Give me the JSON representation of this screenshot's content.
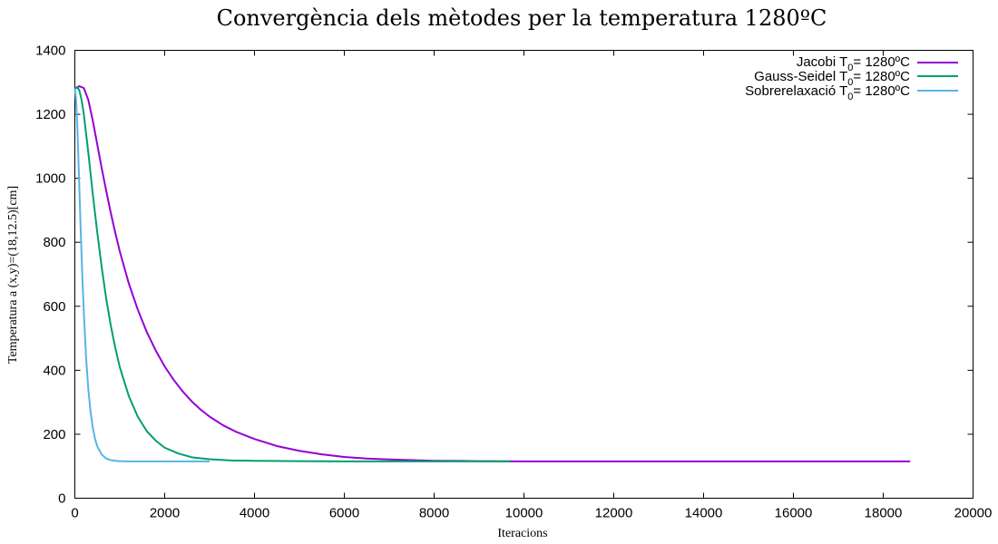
{
  "chart_data": {
    "type": "line",
    "title": "Convergència dels mètodes per la temperatura 1280ºC",
    "xlabel": "Iteracions",
    "ylabel": "Temperatura a (x,y)=(18,12.5)[cm]",
    "xlim": [
      0,
      20000
    ],
    "ylim": [
      0,
      1400
    ],
    "xticks": [
      0,
      2000,
      4000,
      6000,
      8000,
      10000,
      12000,
      14000,
      16000,
      18000,
      20000
    ],
    "yticks": [
      0,
      200,
      400,
      600,
      800,
      1000,
      1200,
      1400
    ],
    "grid": false,
    "legend_position": "top-right",
    "series": [
      {
        "name": "Jacobi T0= 1280ºC",
        "legend_main": "Jacobi T",
        "legend_sub": "0",
        "legend_tail": "= 1280ºC",
        "color": "#9400d3",
        "x": [
          0,
          100,
          200,
          300,
          400,
          500,
          600,
          700,
          800,
          900,
          1000,
          1200,
          1400,
          1600,
          1800,
          2000,
          2200,
          2400,
          2600,
          2800,
          3000,
          3300,
          3600,
          4000,
          4500,
          5000,
          5500,
          6000,
          6500,
          7000,
          8000,
          9000,
          10000,
          12000,
          14000,
          16000,
          18000,
          18600
        ],
        "y": [
          1280,
          1288,
          1282,
          1245,
          1180,
          1105,
          1030,
          960,
          892,
          830,
          772,
          672,
          590,
          520,
          462,
          412,
          370,
          334,
          303,
          277,
          255,
          228,
          207,
          185,
          163,
          148,
          137,
          129,
          124,
          121,
          117,
          116,
          115,
          115,
          115,
          115,
          115,
          115
        ]
      },
      {
        "name": "Gauss-Seidel T0= 1280ºC",
        "legend_main": "Gauss-Seidel T",
        "legend_sub": "0",
        "legend_tail": "= 1280ºC",
        "color": "#009e73",
        "x": [
          0,
          50,
          100,
          150,
          200,
          300,
          400,
          500,
          600,
          700,
          800,
          900,
          1000,
          1200,
          1400,
          1600,
          1800,
          2000,
          2300,
          2600,
          3000,
          3500,
          4000,
          5000,
          6000,
          7000,
          8000,
          9000,
          9700
        ],
        "y": [
          1280,
          1285,
          1275,
          1245,
          1200,
          1080,
          950,
          830,
          720,
          622,
          540,
          470,
          410,
          320,
          255,
          210,
          180,
          158,
          140,
          128,
          122,
          118,
          117,
          116,
          115,
          115,
          115,
          115,
          115
        ]
      },
      {
        "name": "Sobrerelaxació T0= 1280ºC",
        "legend_main": "Sobrerelaxació T",
        "legend_sub": "0",
        "legend_tail": "= 1280ºC",
        "color": "#56b4e9",
        "x": [
          0,
          25,
          50,
          75,
          100,
          125,
          150,
          175,
          200,
          250,
          300,
          350,
          400,
          450,
          500,
          600,
          700,
          800,
          900,
          1000,
          1200,
          1500,
          2000,
          2500,
          3000
        ],
        "y": [
          1280,
          1250,
          1180,
          1080,
          970,
          860,
          760,
          665,
          580,
          440,
          340,
          270,
          220,
          185,
          162,
          136,
          124,
          119,
          117,
          116,
          115,
          115,
          115,
          115,
          115
        ]
      }
    ]
  }
}
